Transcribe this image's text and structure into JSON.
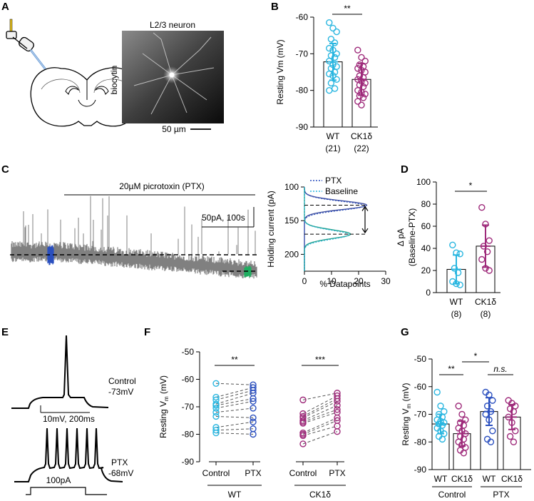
{
  "colors": {
    "wt": "#29b6e0",
    "ck1d": "#9e2a7a",
    "trace": "#808080",
    "blue": "#2a4fbf",
    "green": "#1fae60"
  },
  "figure": {
    "panels": {
      "a": {
        "letter": "A",
        "title": "L2/3 neuron",
        "stain": "biocytin",
        "scale": "50 µm"
      },
      "b": {
        "letter": "B"
      },
      "c": {
        "letter": "C",
        "drug": "20µM picrotoxin (PTX)",
        "scale": "50pA, 100s"
      },
      "d": {
        "letter": "D"
      },
      "e": {
        "letter": "E",
        "control_label": "Control",
        "control_vm": "-73mV",
        "ptx_label": "PTX",
        "ptx_vm": "-68mV",
        "scale": "10mV, 200ms",
        "step": "100pA"
      },
      "f": {
        "letter": "F"
      },
      "g": {
        "letter": "G"
      }
    }
  },
  "chart_data": [
    {
      "panel": "B",
      "type": "bar",
      "ylabel": "Resting Vm (mV)",
      "ylim": [
        -90,
        -60
      ],
      "yticks": [
        -60,
        -70,
        -80,
        -90
      ],
      "categories": [
        "WT",
        "CK1δ"
      ],
      "counts": [
        "(21)",
        "(22)"
      ],
      "means": [
        -72.2,
        -77.0
      ],
      "sd": [
        5.0,
        4.3
      ],
      "significance": "**",
      "points": [
        [
          -61.5,
          -63,
          -64,
          -66,
          -67,
          -68.5,
          -69,
          -70,
          -70.5,
          -71,
          -72,
          -73,
          -73.5,
          -74,
          -75,
          -75.5,
          -76,
          -77,
          -78,
          -79.5,
          -80
        ],
        [
          -69,
          -71,
          -72,
          -73,
          -73.5,
          -74,
          -74.5,
          -75,
          -76,
          -76.5,
          -77,
          -77.5,
          -78,
          -78.5,
          -79,
          -80,
          -80.5,
          -81,
          -81.5,
          -82,
          -83,
          -84
        ]
      ]
    },
    {
      "panel": "C-histogram",
      "type": "line",
      "xlabel": "% Datapoints",
      "ylabel": "Holding current (pA)",
      "xlim": [
        0,
        30
      ],
      "ylim": [
        100,
        225
      ],
      "xticks": [
        0,
        10,
        20,
        30
      ],
      "yticks": [
        100,
        150,
        200
      ],
      "series": [
        {
          "name": "PTX",
          "peak_pA": 127,
          "peak_pct": 23
        },
        {
          "name": "Baseline",
          "peak_pA": 170,
          "peak_pct": 17
        }
      ]
    },
    {
      "panel": "D",
      "type": "bar",
      "ylabel": "Δ pA",
      "ylabel2": "(Baseline-PTX)",
      "ylim": [
        0,
        100
      ],
      "yticks": [
        0,
        20,
        40,
        60,
        80,
        100
      ],
      "categories": [
        "WT",
        "CK1δ"
      ],
      "counts": [
        "(8)",
        "(8)"
      ],
      "means": [
        21,
        42
      ],
      "sd": [
        13,
        19
      ],
      "significance": "*",
      "points": [
        [
          43,
          36,
          35,
          22,
          18,
          10,
          8,
          7
        ],
        [
          77,
          62,
          47,
          42,
          37,
          30,
          22,
          20
        ]
      ]
    },
    {
      "panel": "F",
      "type": "scatter",
      "ylabel": "Resting V",
      "ylabel_sub": "m",
      "ylabel_unit": " (mV)",
      "ylim": [
        -90,
        -50
      ],
      "yticks": [
        -50,
        -60,
        -70,
        -80,
        -90
      ],
      "groups": [
        {
          "name": "WT",
          "significance": "**",
          "conditions": [
            "Control",
            "PTX"
          ],
          "pairs": [
            [
              -61.5,
              -62
            ],
            [
              -66.5,
              -63
            ],
            [
              -67.5,
              -64
            ],
            [
              -69,
              -65
            ],
            [
              -69.5,
              -67
            ],
            [
              -70.5,
              -68
            ],
            [
              -72,
              -70.5
            ],
            [
              -73.5,
              -74
            ],
            [
              -77.5,
              -75.5
            ],
            [
              -78.5,
              -78
            ],
            [
              -79.5,
              -80
            ]
          ]
        },
        {
          "name": "CK1δ",
          "significance": "***",
          "conditions": [
            "Control",
            "PTX"
          ],
          "pairs": [
            [
              -67.5,
              -65
            ],
            [
              -72.5,
              -66
            ],
            [
              -73.5,
              -67
            ],
            [
              -74,
              -68
            ],
            [
              -75,
              -69.5
            ],
            [
              -75.5,
              -71
            ],
            [
              -76,
              -72
            ],
            [
              -79.5,
              -74
            ],
            [
              -80,
              -75
            ],
            [
              -80.5,
              -77
            ],
            [
              -83.5,
              -79
            ]
          ]
        }
      ]
    },
    {
      "panel": "G",
      "type": "bar",
      "ylabel": "Resting V",
      "ylabel_sub": "m",
      "ylabel_unit": " (mV)",
      "ylim": [
        -90,
        -50
      ],
      "yticks": [
        -50,
        -60,
        -70,
        -80,
        -90
      ],
      "categories": [
        "WT",
        "CK1δ",
        "WT",
        "CK1δ"
      ],
      "groups": [
        "Control",
        "PTX"
      ],
      "means": [
        -73.5,
        -77,
        -69,
        -71
      ],
      "sd": [
        3.5,
        4.5,
        5,
        4.5
      ],
      "significance": [
        {
          "between": [
            0,
            1
          ],
          "label": "**"
        },
        {
          "between": [
            2,
            3
          ],
          "label": "n.s."
        },
        {
          "between": [
            1,
            2
          ],
          "label": "*"
        }
      ],
      "points": [
        [
          -62,
          -67,
          -69,
          -70,
          -71,
          -72,
          -72.5,
          -73,
          -73.5,
          -74,
          -75,
          -76,
          -77,
          -78,
          -79
        ],
        [
          -67,
          -70,
          -72,
          -73,
          -74,
          -75,
          -76,
          -77,
          -78,
          -79,
          -80,
          -81,
          -82,
          -83,
          -84
        ],
        [
          -62,
          -63,
          -65,
          -67,
          -69,
          -70,
          -72,
          -76,
          -79,
          -80
        ],
        [
          -65,
          -66,
          -67,
          -68,
          -69,
          -71,
          -73,
          -76,
          -78,
          -80
        ]
      ]
    }
  ]
}
